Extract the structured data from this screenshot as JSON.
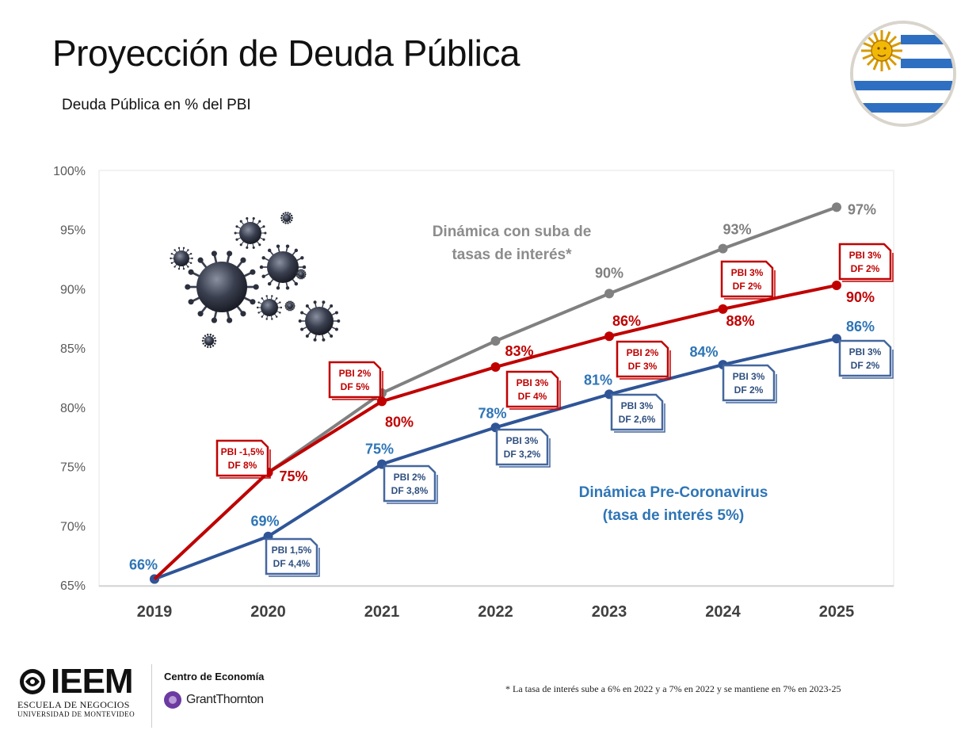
{
  "header": {
    "title": "Proyección de Deuda Pública",
    "subtitle": "Deuda Pública en % del PBI"
  },
  "footer": {
    "note": "* La tasa de interés sube a 6% en 2022 y a 7% en 2022 y se mantiene en 7% en 2023-25",
    "logo_ieem": "IEEM",
    "logo_ieem_line1": "ESCUELA DE NEGOCIOS",
    "logo_ieem_line2": "UNIVERSIDAD DE MONTEVIDEO",
    "partner_label": "Centro de Economía",
    "partner_name": "GrantThornton"
  },
  "colors": {
    "gray_series": "#808080",
    "red_series": "#c00000",
    "blue_series": "#2f5597",
    "blue_labels": "#2e75b6",
    "annotation_border_blue": "#44679e"
  },
  "chart_data": {
    "type": "line",
    "x": [
      "2019",
      "2020",
      "2021",
      "2022",
      "2023",
      "2024",
      "2025"
    ],
    "ylim": [
      65,
      100
    ],
    "yticks": [
      "65%",
      "70%",
      "75%",
      "80%",
      "85%",
      "90%",
      "95%",
      "100%"
    ],
    "grid": false,
    "series": [
      {
        "key": "gray",
        "values": [
          65.5,
          74.5,
          81.2,
          85.6,
          89.6,
          93.4,
          96.9
        ],
        "point_labels": [
          "",
          "",
          "",
          "",
          "90%",
          "93%",
          "97%"
        ],
        "annotation": "Dinámica con suba de tasas de interés*"
      },
      {
        "key": "red",
        "values": [
          null,
          74.5,
          80.5,
          83.4,
          86.0,
          88.3,
          90.3
        ],
        "point_labels": [
          "",
          "75%",
          "80%",
          "83%",
          "86%",
          "88%",
          "90%"
        ],
        "boxes": [
          {
            "year": "2020",
            "lines": [
              "PBI -1,5%",
              "DF 8%"
            ]
          },
          {
            "year": "2021",
            "lines": [
              "PBI 2%",
              "DF 5%"
            ]
          },
          {
            "year": "2022",
            "lines": [
              "PBI 3%",
              "DF 4%"
            ]
          },
          {
            "year": "2023",
            "lines": [
              "PBI 2%",
              "DF 3%"
            ]
          },
          {
            "year": "2024",
            "lines": [
              "PBI 3%",
              "DF 2%"
            ]
          },
          {
            "year": "2025",
            "lines": [
              "PBI 3%",
              "DF 2%"
            ]
          }
        ]
      },
      {
        "key": "blue",
        "values": [
          65.5,
          69.1,
          75.2,
          78.3,
          81.1,
          83.6,
          85.8
        ],
        "point_labels": [
          "66%",
          "69%",
          "75%",
          "78%",
          "81%",
          "84%",
          "86%"
        ],
        "annotation_lines": [
          "Dinámica  Pre-Coronavirus",
          "(tasa de interés 5%)"
        ],
        "boxes": [
          {
            "year": "2020",
            "lines": [
              "PBI 1,5%",
              "DF 4,4%"
            ]
          },
          {
            "year": "2021",
            "lines": [
              "PBI 2%",
              "DF 3,8%"
            ]
          },
          {
            "year": "2022",
            "lines": [
              "PBI 3%",
              "DF 3,2%"
            ]
          },
          {
            "year": "2023",
            "lines": [
              "PBI 3%",
              "DF 2,6%"
            ]
          },
          {
            "year": "2024",
            "lines": [
              "PBI 3%",
              "DF 2%"
            ]
          },
          {
            "year": "2025",
            "lines": [
              "PBI 3%",
              "DF 2%"
            ]
          }
        ]
      }
    ]
  }
}
